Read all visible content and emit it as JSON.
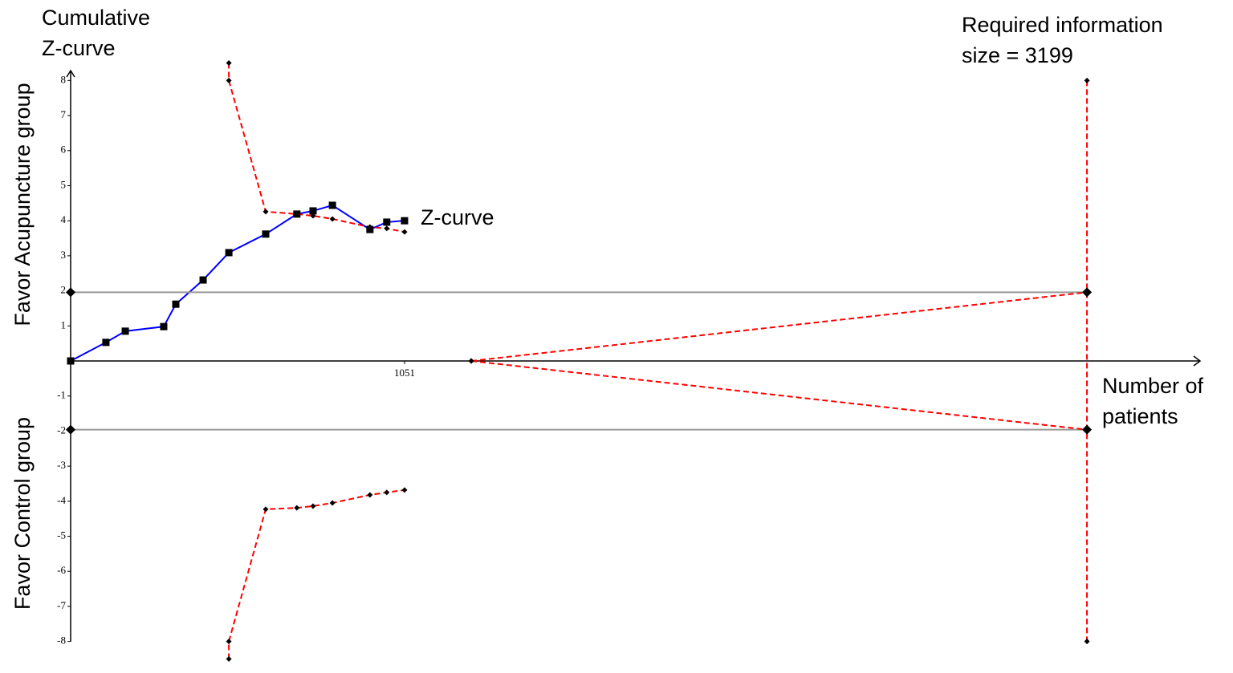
{
  "chart_data": {
    "type": "line",
    "title_lines": [
      "Cumulative",
      "Z-curve"
    ],
    "ylabel_upper": "Favor Acupuncture group",
    "ylabel_lower": "Favor Control group",
    "xlabel_lines": [
      "Number of",
      "patients"
    ],
    "annotation_lines": [
      "Required information",
      "size = 3199"
    ],
    "xlim": [
      0,
      3550
    ],
    "ylim": [
      -8.5,
      8.5
    ],
    "xticks": [
      1051
    ],
    "yticks": [
      -8,
      -7,
      -6,
      -5,
      -4,
      -3,
      -2,
      -1,
      1,
      2,
      3,
      4,
      5,
      6,
      7,
      8
    ],
    "series": [
      {
        "name": "Z-curve",
        "color": "#0000ff",
        "dashed": false,
        "marker": "square",
        "x": [
          0,
          111,
          172,
          293,
          331,
          417,
          498,
          614,
          712,
          763,
          824,
          942,
          995,
          1051
        ],
        "values": [
          0,
          0.53,
          0.85,
          0.98,
          1.62,
          2.31,
          3.09,
          3.62,
          4.19,
          4.28,
          4.44,
          3.75,
          3.96,
          4.0
        ]
      },
      {
        "color": "#999999",
        "dashed": false,
        "marker": "diamond-large",
        "x": [
          0,
          3199
        ],
        "values": [
          1.96,
          1.96
        ]
      },
      {
        "color": "#999999",
        "dashed": false,
        "marker": "diamond-large",
        "x": [
          0,
          3199
        ],
        "values": [
          -1.96,
          -1.96
        ]
      },
      {
        "color": "#ff0000",
        "dashed": true,
        "marker": "diamond",
        "x": [
          498,
          498,
          614,
          712,
          763,
          824,
          942,
          995,
          1051
        ],
        "values": [
          8.5,
          8,
          4.26,
          4.19,
          4.14,
          4.05,
          3.82,
          3.78,
          3.68
        ]
      },
      {
        "color": "#ff0000",
        "dashed": true,
        "marker": "diamond",
        "x": [
          498,
          498,
          614,
          712,
          763,
          824,
          942,
          995,
          1051
        ],
        "values": [
          -8.5,
          -8,
          -4.23,
          -4.19,
          -4.14,
          -4.05,
          -3.82,
          -3.75,
          -3.68
        ]
      },
      {
        "color": "#ff0000",
        "dashed": true,
        "marker": "diamond",
        "x": [
          1261,
          3199
        ],
        "values": [
          0,
          1.96
        ]
      },
      {
        "color": "#ff0000",
        "dashed": true,
        "marker": "diamond",
        "x": [
          1261,
          3199
        ],
        "values": [
          0,
          -1.96
        ]
      },
      {
        "color": "#ff0000",
        "dashed": true,
        "marker": "diamond",
        "x": [
          3199,
          3199
        ],
        "values": [
          8,
          -8
        ]
      }
    ]
  }
}
